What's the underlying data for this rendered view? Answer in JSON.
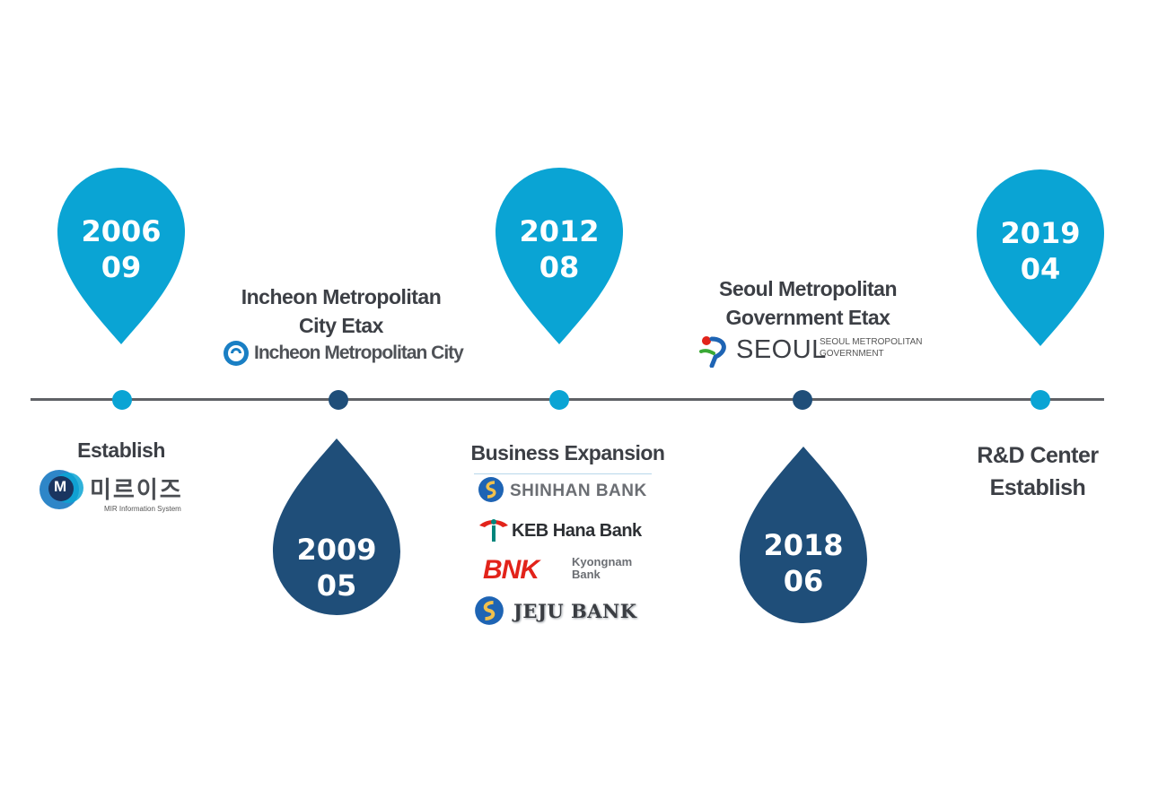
{
  "timeline": {
    "milestones": [
      {
        "year": "2006",
        "month": "09",
        "label": "Establish"
      },
      {
        "year": "2009",
        "month": "05",
        "label_line1": "Incheon Metropolitan",
        "label_line2": "City Etax"
      },
      {
        "year": "2012",
        "month": "08",
        "label": "Business Expansion"
      },
      {
        "year": "2018",
        "month": "06",
        "label_line1": "Seoul Metropolitan",
        "label_line2": "Government Etax"
      },
      {
        "year": "2019",
        "month": "04",
        "label_line1": "R&D Center",
        "label_line2": "Establish"
      }
    ]
  },
  "logos": {
    "miraes": {
      "mark": "M",
      "name": "미르이즈",
      "subtitle": "MIR Information System"
    },
    "incheon": {
      "name": "Incheon Metropolitan City"
    },
    "shinhan": {
      "name": "SHINHAN BANK"
    },
    "keb": {
      "name": "KEB Hana Bank"
    },
    "bnk": {
      "mark": "BNK",
      "name_line1": "Kyongnam",
      "name_line2": "Bank"
    },
    "jeju": {
      "name": "JEJU BANK"
    },
    "seoul": {
      "name": "SEOUL",
      "sub_line1": "SEOUL METROPOLITAN",
      "sub_line2": "GOVERNMENT"
    }
  },
  "colors": {
    "light_pin": "#0aa4d4",
    "dark_pin": "#1f4e79",
    "line": "#5f6166",
    "text": "#3c3f45"
  }
}
